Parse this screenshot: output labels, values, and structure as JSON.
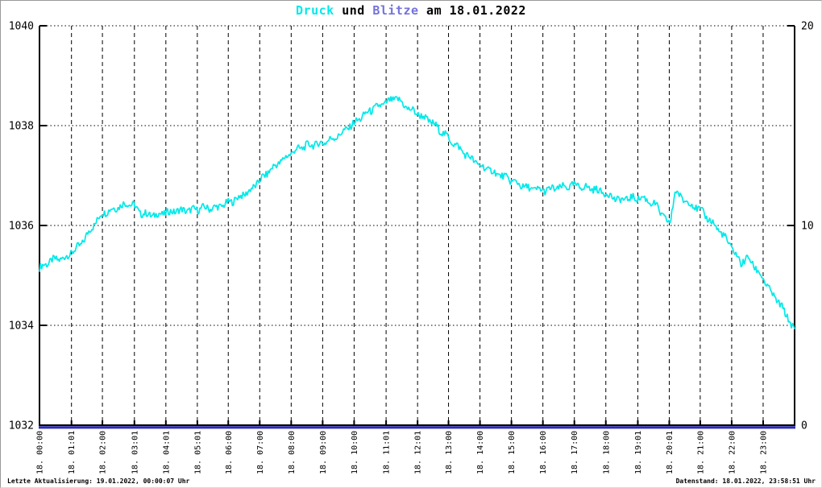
{
  "title": {
    "druck": "Druck",
    "und": " und ",
    "blitze": "Blitze",
    "date_suffix": " am 18.01.2022"
  },
  "footer": {
    "last_update": "Letzte Aktualisierung: 19.01.2022, 00:00:07 Uhr",
    "data_state": "Datenstand: 18.01.2022, 23:58:51 Uhr"
  },
  "colors": {
    "pressure": "#00e9e9",
    "lightning_line": "#2e2eb4",
    "lightning_title": "#7373db",
    "axis": "#000000",
    "grid": "#000000",
    "background": "#ffffff",
    "text": "#000000"
  },
  "chart_data": {
    "type": "line",
    "title": "Druck und Blitze am 18.01.2022",
    "grid": {
      "horizontal": "dotted",
      "vertical": "dashed"
    },
    "legend_position": "none",
    "x_axis": {
      "range_hours": [
        0,
        24
      ],
      "tick_labels": [
        "18. 00:00",
        "18. 01:01",
        "18. 02:00",
        "18. 03:01",
        "18. 04:01",
        "18. 05:01",
        "18. 06:00",
        "18. 07:00",
        "18. 08:00",
        "18. 09:00",
        "18. 10:00",
        "18. 11:01",
        "18. 12:01",
        "18. 13:00",
        "18. 14:00",
        "18. 15:00",
        "18. 16:00",
        "18. 17:00",
        "18. 18:00",
        "18. 19:01",
        "18. 20:01",
        "18. 21:00",
        "18. 22:00",
        "18. 23:00"
      ]
    },
    "left_axis": {
      "series": "Druck",
      "range": [
        1032,
        1040
      ],
      "ticks": [
        1040,
        1038,
        1036,
        1034,
        1032
      ]
    },
    "right_axis": {
      "series": "Blitze",
      "range": [
        0,
        20
      ],
      "ticks": [
        20,
        10,
        0
      ]
    },
    "series": [
      {
        "name": "Druck",
        "axis": "left",
        "color": "#00e9e9",
        "noise_amplitude_hpa": 0.08,
        "anchor_points_hour_hpa": [
          [
            0.0,
            1035.15
          ],
          [
            0.4,
            1035.3
          ],
          [
            0.8,
            1035.35
          ],
          [
            1.0,
            1035.45
          ],
          [
            1.3,
            1035.6
          ],
          [
            1.6,
            1035.9
          ],
          [
            2.0,
            1036.25
          ],
          [
            2.4,
            1036.35
          ],
          [
            2.8,
            1036.45
          ],
          [
            3.0,
            1036.4
          ],
          [
            3.2,
            1036.25
          ],
          [
            3.6,
            1036.2
          ],
          [
            4.0,
            1036.25
          ],
          [
            4.4,
            1036.3
          ],
          [
            4.8,
            1036.3
          ],
          [
            5.2,
            1036.35
          ],
          [
            5.6,
            1036.35
          ],
          [
            6.0,
            1036.45
          ],
          [
            6.3,
            1036.55
          ],
          [
            6.7,
            1036.7
          ],
          [
            7.0,
            1036.9
          ],
          [
            7.4,
            1037.15
          ],
          [
            7.8,
            1037.35
          ],
          [
            8.1,
            1037.5
          ],
          [
            8.5,
            1037.6
          ],
          [
            9.0,
            1037.65
          ],
          [
            9.5,
            1037.8
          ],
          [
            10.0,
            1038.05
          ],
          [
            10.5,
            1038.3
          ],
          [
            11.0,
            1038.45
          ],
          [
            11.35,
            1038.55
          ],
          [
            11.7,
            1038.35
          ],
          [
            12.0,
            1038.25
          ],
          [
            12.5,
            1038.05
          ],
          [
            13.0,
            1037.75
          ],
          [
            13.5,
            1037.45
          ],
          [
            14.0,
            1037.2
          ],
          [
            14.5,
            1037.05
          ],
          [
            15.0,
            1036.9
          ],
          [
            15.5,
            1036.75
          ],
          [
            16.0,
            1036.7
          ],
          [
            16.5,
            1036.75
          ],
          [
            17.0,
            1036.8
          ],
          [
            17.5,
            1036.75
          ],
          [
            18.0,
            1036.65
          ],
          [
            18.4,
            1036.5
          ],
          [
            18.8,
            1036.55
          ],
          [
            19.2,
            1036.55
          ],
          [
            19.6,
            1036.4
          ],
          [
            19.9,
            1036.1
          ],
          [
            20.05,
            1036.05
          ],
          [
            20.2,
            1036.7
          ],
          [
            20.4,
            1036.55
          ],
          [
            20.8,
            1036.4
          ],
          [
            21.0,
            1036.3
          ],
          [
            21.4,
            1036.05
          ],
          [
            21.8,
            1035.75
          ],
          [
            22.0,
            1035.55
          ],
          [
            22.3,
            1035.25
          ],
          [
            22.55,
            1035.35
          ],
          [
            22.8,
            1035.1
          ],
          [
            23.0,
            1034.95
          ],
          [
            23.2,
            1034.7
          ],
          [
            23.5,
            1034.45
          ],
          [
            23.75,
            1034.2
          ],
          [
            23.95,
            1033.95
          ],
          [
            24.0,
            1033.85
          ]
        ]
      },
      {
        "name": "Blitze",
        "axis": "right",
        "color": "#2e2eb4",
        "constant_value": 0
      }
    ]
  }
}
